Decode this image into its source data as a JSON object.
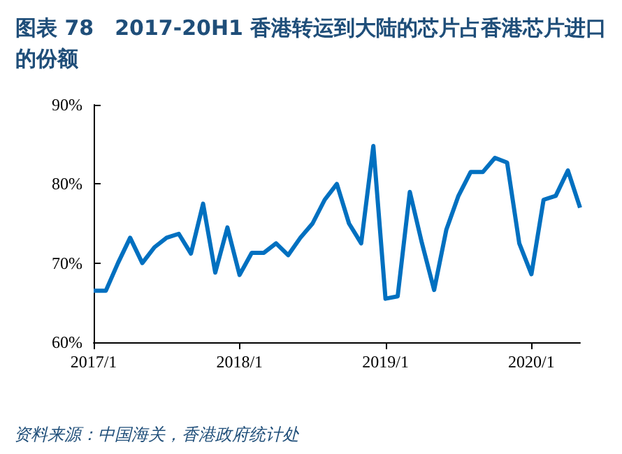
{
  "chart_data": {
    "type": "line",
    "title": "图表 78　2017-20H1 香港转运到大陆的芯片占香港芯片进口的份额",
    "categories": [
      "2017/1",
      null,
      null,
      null,
      null,
      null,
      null,
      null,
      null,
      null,
      null,
      null,
      "2018/1",
      null,
      null,
      null,
      null,
      null,
      null,
      null,
      null,
      null,
      null,
      null,
      "2019/1",
      null,
      null,
      null,
      null,
      null,
      null,
      null,
      null,
      null,
      null,
      null,
      "2020/1",
      null,
      null,
      null,
      null
    ],
    "series": [
      {
        "color": "#0070c0",
        "values": [
          66.5,
          66.5,
          70,
          73.2,
          70,
          72,
          73.2,
          73.7,
          71.2,
          77.5,
          68.8,
          74.5,
          68.5,
          71.3,
          71.3,
          72.5,
          71,
          73.2,
          75,
          78,
          80,
          75,
          72.5,
          84.8,
          65.5,
          65.8,
          79,
          72.5,
          66.6,
          74.2,
          78.5,
          81.5,
          81.5,
          83.3,
          82.7,
          72.5,
          68.6,
          78,
          78.5,
          81.7,
          77
        ]
      }
    ],
    "ylim": [
      60,
      90
    ],
    "yticks": [
      {
        "value": 60,
        "label": "60%"
      },
      {
        "value": 70,
        "label": "70%"
      },
      {
        "value": 80,
        "label": "80%"
      },
      {
        "value": 90,
        "label": "90%"
      }
    ],
    "grid": false,
    "marker": "none",
    "line_style": "solid",
    "annotations": [
      "资料来源：中国海关，香港政府统计处"
    ]
  }
}
